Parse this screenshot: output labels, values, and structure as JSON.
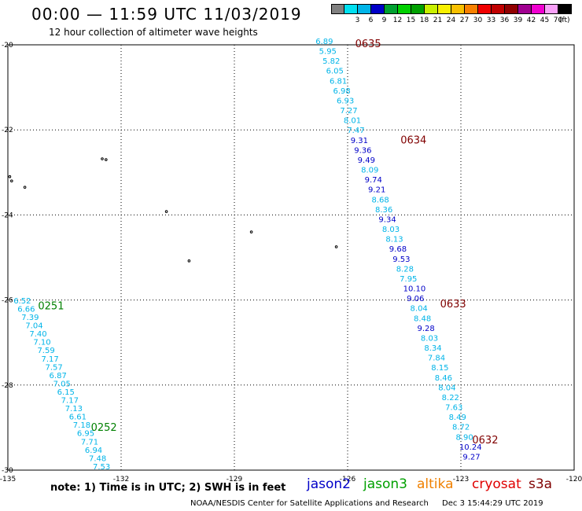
{
  "header": {
    "title": "00:00 — 11:59 UTC 11/03/2019",
    "subtitle": "12 hour collection of altimeter wave heights"
  },
  "scale": {
    "unit": "(ft)",
    "bins": [
      {
        "label": "",
        "color": "#808080"
      },
      {
        "label": "3",
        "color": "#00e0f0"
      },
      {
        "label": "6",
        "color": "#00b4e8"
      },
      {
        "label": "9",
        "color": "#0000c8"
      },
      {
        "label": "12",
        "color": "#00a030"
      },
      {
        "label": "15",
        "color": "#00d000"
      },
      {
        "label": "18",
        "color": "#00a000"
      },
      {
        "label": "21",
        "color": "#c8f000"
      },
      {
        "label": "24",
        "color": "#f8f000"
      },
      {
        "label": "27",
        "color": "#f8c000"
      },
      {
        "label": "30",
        "color": "#f88000"
      },
      {
        "label": "33",
        "color": "#f00000"
      },
      {
        "label": "36",
        "color": "#c00000"
      },
      {
        "label": "39",
        "color": "#900000"
      },
      {
        "label": "42",
        "color": "#a00090"
      },
      {
        "label": "45",
        "color": "#f000d0"
      },
      {
        "label": "70",
        "color": "#f8a0f8"
      },
      {
        "label": "",
        "color": "#000000"
      }
    ]
  },
  "map": {
    "lon_ticks": [
      {
        "v": -135,
        "label": "-135"
      },
      {
        "v": -132,
        "label": "-132"
      },
      {
        "v": -129,
        "label": "-129"
      },
      {
        "v": -126,
        "label": "-126"
      },
      {
        "v": -123,
        "label": "-123"
      },
      {
        "v": -120,
        "label": "-120"
      }
    ],
    "lat_ticks": [
      {
        "v": -20,
        "label": "-20"
      },
      {
        "v": -22,
        "label": "-22"
      },
      {
        "v": -24,
        "label": "-24"
      },
      {
        "v": -26,
        "label": "-26"
      },
      {
        "v": -28,
        "label": "-28"
      },
      {
        "v": -30,
        "label": "-30"
      }
    ],
    "islands": [
      [
        -132.5,
        -22.68
      ],
      [
        -132.4,
        -22.7
      ],
      [
        -134.95,
        -23.1
      ],
      [
        -134.9,
        -23.2
      ],
      [
        -134.55,
        -23.35
      ],
      [
        -130.8,
        -23.92
      ],
      [
        -128.55,
        -24.4
      ],
      [
        -130.2,
        -25.08
      ],
      [
        -126.3,
        -24.75
      ]
    ],
    "passes": [
      {
        "label": "0635",
        "color": "#800000",
        "lon": -125.8,
        "lat": -19.98
      },
      {
        "label": "0634",
        "color": "#800000",
        "lon": -124.6,
        "lat": -22.25
      },
      {
        "label": "0633",
        "color": "#800000",
        "lon": -123.55,
        "lat": -26.1
      },
      {
        "label": "0632",
        "color": "#800000",
        "lon": -122.7,
        "lat": -29.3
      },
      {
        "label": "0251",
        "color": "#008000",
        "lon": -134.2,
        "lat": -26.15
      },
      {
        "label": "0252",
        "color": "#008000",
        "lon": -132.8,
        "lat": -29.0
      }
    ],
    "tracks": [
      {
        "name": "cryosat-track-north",
        "start": {
          "lon": -126.85,
          "lat": -19.98
        },
        "end": {
          "lon": -122.95,
          "lat": -29.75
        },
        "values": [
          "6.89",
          "5.95",
          "5.82",
          "6.05",
          "6.81",
          "6.98",
          "6.93",
          "7.27",
          "8.01",
          "7.47",
          "9.31",
          "9.36",
          "9.49",
          "8.09",
          "9.74",
          "9.21",
          "8.68",
          "8.36",
          "9.34",
          "8.03",
          "8.13",
          "9.68",
          "9.53",
          "8.28",
          "7.95",
          "10.10",
          "9.06",
          "8.04",
          "8.48",
          "9.28",
          "8.03",
          "8.34",
          "7.84",
          "8.15",
          "8.46",
          "8.04",
          "8.22",
          "7.63",
          "8.49",
          "8.72",
          "8.90",
          "10.24",
          "9.27"
        ]
      },
      {
        "name": "jason3-track-south",
        "start": {
          "lon": -134.85,
          "lat": -26.08
        },
        "end": {
          "lon": -132.75,
          "lat": -29.98
        },
        "values": [
          "6.52",
          "6.66",
          "7.39",
          "7.04",
          "7.40",
          "7.10",
          "7.59",
          "7.17",
          "7.57",
          "6.87",
          "7.05",
          "6.15",
          "7.17",
          "7.13",
          "6.61",
          "7.18",
          "6.95",
          "7.71",
          "6.94",
          "7.48",
          "7.53"
        ]
      }
    ]
  },
  "footer": {
    "note": "note: 1) Time is in UTC; 2) SWH is in feet",
    "satellites": [
      {
        "name": "jason2",
        "color": "#0000c8"
      },
      {
        "name": "jason3",
        "color": "#00a000"
      },
      {
        "name": "altika",
        "color": "#f08000"
      },
      {
        "name": "cryosat",
        "color": "#e00000"
      },
      {
        "name": "s3a",
        "color": "#800000"
      }
    ],
    "credit": "NOAA/NESDIS Center for Satellite Applications and Research",
    "timestamp": "Dec  3 15:44:29 UTC 2019"
  }
}
